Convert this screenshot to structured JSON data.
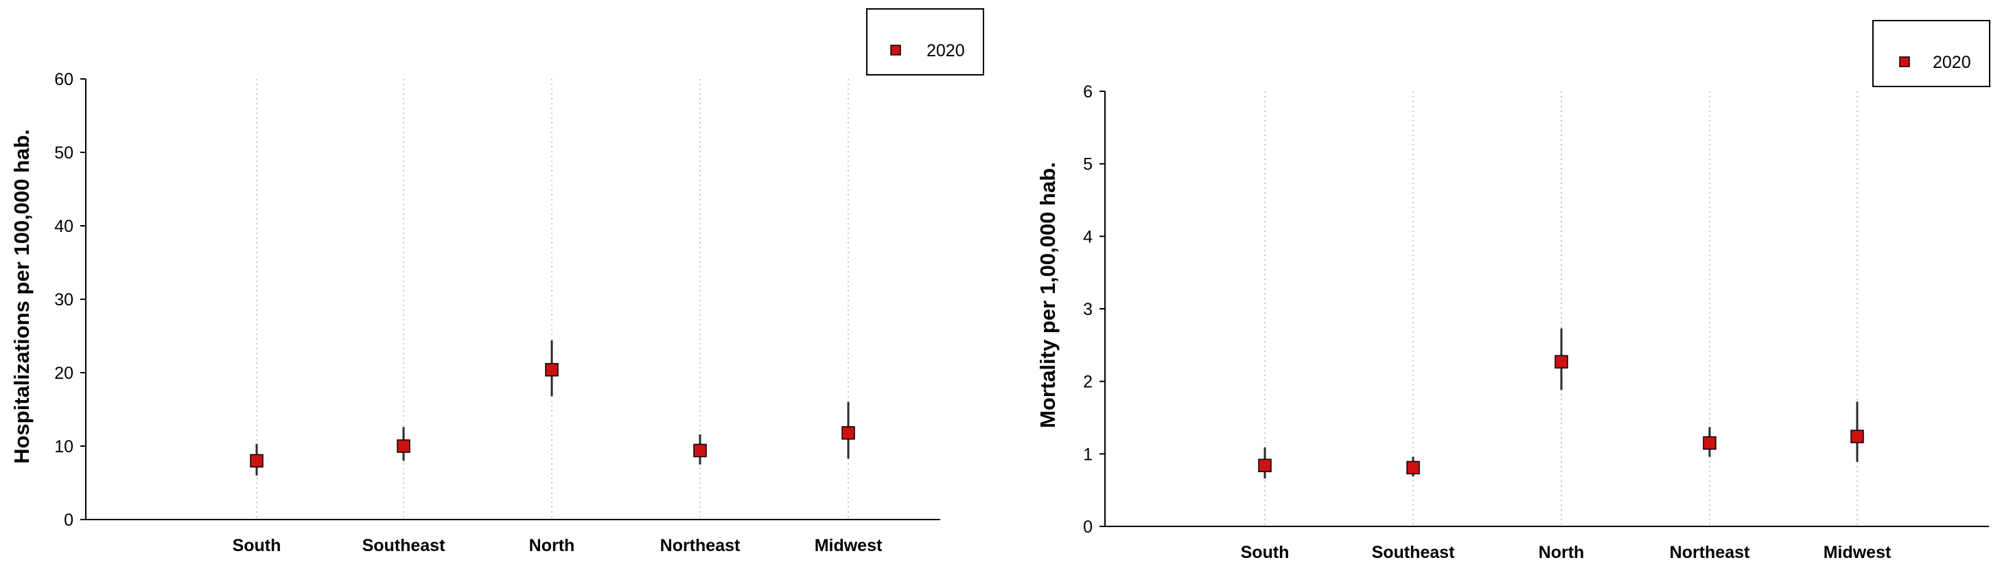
{
  "colors": {
    "marker": "#cc1111",
    "marker_edge": "#000000",
    "grid": "#c8c8c8",
    "axis": "#000000",
    "errorbar": "#2a2a2a"
  },
  "chart_data": [
    {
      "type": "scatter",
      "categories": [
        "South",
        "Southeast",
        "North",
        "Northeast",
        "Midwest"
      ],
      "ylabel": "Hospitalizations per 100,000 hab.",
      "ylim": [
        0,
        60
      ],
      "yticks": [
        0,
        10,
        20,
        30,
        40,
        50,
        60
      ],
      "grid": "vertical dotted lines at categories",
      "legend_position": "top-right",
      "series": [
        {
          "name": "2020",
          "marker": "square",
          "values": [
            8.0,
            10.0,
            20.4,
            9.4,
            11.8
          ],
          "err_low": [
            6.0,
            8.0,
            16.8,
            7.5,
            8.3
          ],
          "err_high": [
            10.3,
            12.6,
            24.4,
            11.6,
            16.0
          ]
        }
      ]
    },
    {
      "type": "scatter",
      "categories": [
        "South",
        "Southeast",
        "North",
        "Northeast",
        "Midwest"
      ],
      "ylabel": "Mortality per 1,00,000 hab.",
      "ylim": [
        0,
        6
      ],
      "yticks": [
        0,
        1,
        2,
        3,
        4,
        5,
        6
      ],
      "grid": "vertical dotted lines at categories",
      "legend_position": "top-right",
      "series": [
        {
          "name": "2020",
          "marker": "square",
          "values": [
            0.84,
            0.81,
            2.27,
            1.15,
            1.24
          ],
          "err_low": [
            0.66,
            0.69,
            1.88,
            0.96,
            0.89
          ],
          "err_high": [
            1.09,
            0.96,
            2.73,
            1.37,
            1.72
          ]
        }
      ]
    }
  ]
}
